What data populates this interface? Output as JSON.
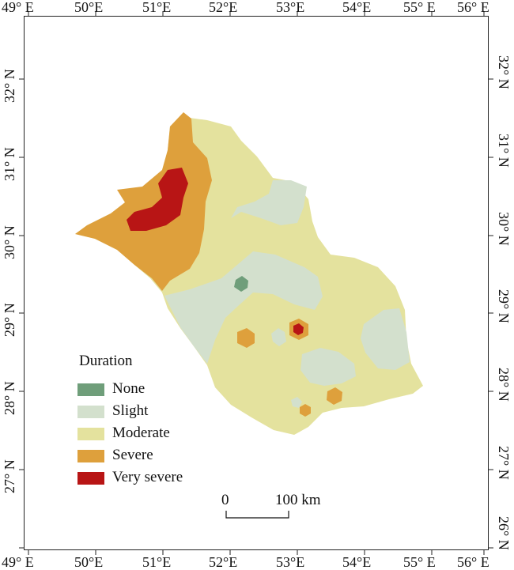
{
  "lon_labels": [
    "49° E",
    "50°E",
    "51°E",
    "52°E",
    "53°E",
    "54°E",
    "55° E",
    "56° E"
  ],
  "lat_labels": [
    "32° N",
    "31° N",
    "30° N",
    "29° N",
    "28° N",
    "27° N",
    "26° N"
  ],
  "legend": {
    "title": "Duration",
    "items": [
      {
        "label": "None",
        "color": "#6f9e7a"
      },
      {
        "label": "Slight",
        "color": "#d3e0cd"
      },
      {
        "label": "Moderate",
        "color": "#e4e29e"
      },
      {
        "label": "Severe",
        "color": "#dea03c"
      },
      {
        "label": "Very severe",
        "color": "#b81515"
      }
    ]
  },
  "scale_bar": {
    "start": "0",
    "end": "100 km"
  }
}
